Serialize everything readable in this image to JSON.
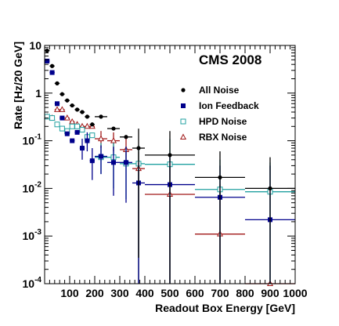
{
  "chart_data": {
    "type": "scatter",
    "title": "CMS 2008",
    "xlabel": "Readout Box Energy [GeV]",
    "ylabel": "Rate [Hz/20 GeV]",
    "xlim": [
      0,
      1000
    ],
    "ylim": [
      0.0001,
      10
    ],
    "y_scale": "log",
    "grid": false,
    "legend_position": "right-middle",
    "x_tick_labels": [
      "100",
      "200",
      "300",
      "400",
      "500",
      "600",
      "700",
      "800",
      "900",
      "1000"
    ],
    "y_tick_labels": [
      {
        "base": "10",
        "exp": "-4"
      },
      {
        "base": "10",
        "exp": "-3"
      },
      {
        "base": "10",
        "exp": "-2"
      },
      {
        "base": "10",
        "exp": "-1"
      },
      {
        "base": "1",
        "exp": ""
      },
      {
        "base": "10",
        "exp": ""
      }
    ],
    "series": [
      {
        "name": "All Noise",
        "color": "#000000",
        "marker": "circle",
        "points": [
          {
            "x": 10,
            "y": 7.8,
            "xerr": 10
          },
          {
            "x": 30,
            "y": 3.7,
            "xerr": 10
          },
          {
            "x": 50,
            "y": 1.6,
            "xerr": 10
          },
          {
            "x": 70,
            "y": 0.95,
            "xerr": 10
          },
          {
            "x": 90,
            "y": 0.7,
            "xerr": 10
          },
          {
            "x": 110,
            "y": 0.55,
            "xerr": 10
          },
          {
            "x": 130,
            "y": 0.45,
            "xerr": 10
          },
          {
            "x": 150,
            "y": 0.4,
            "xerr": 10
          },
          {
            "x": 170,
            "y": 0.32,
            "xerr": 10
          },
          {
            "x": 190,
            "y": 0.22,
            "xerr": 10
          },
          {
            "x": 225,
            "y": 0.32,
            "xerr": 25
          },
          {
            "x": 275,
            "y": 0.18,
            "xerr": 25
          },
          {
            "x": 325,
            "y": 0.12,
            "xerr": 25
          },
          {
            "x": 375,
            "y": 0.07,
            "xerr": 25,
            "ylo": 0.00035,
            "yhi": 0.18
          },
          {
            "x": 500,
            "y": 0.05,
            "xerr": 100,
            "ylo": 0.0001,
            "yhi": 0.16
          },
          {
            "x": 700,
            "y": 0.017,
            "xerr": 100,
            "ylo": 0.0001,
            "yhi": 0.06
          },
          {
            "x": 900,
            "y": 0.01,
            "xerr": 100,
            "ylo": 0.0001,
            "yhi": 0.045
          }
        ]
      },
      {
        "name": "Ion Feedback",
        "color": "#00008b",
        "marker": "square",
        "points": [
          {
            "x": 10,
            "y": 4.7,
            "xerr": 10
          },
          {
            "x": 30,
            "y": 2.7,
            "xerr": 10
          },
          {
            "x": 50,
            "y": 0.6,
            "xerr": 10
          },
          {
            "x": 70,
            "y": 0.3,
            "xerr": 10
          },
          {
            "x": 90,
            "y": 0.14,
            "xerr": 10
          },
          {
            "x": 110,
            "y": 0.1,
            "xerr": 10
          },
          {
            "x": 130,
            "y": 0.15,
            "xerr": 10
          },
          {
            "x": 150,
            "y": 0.07,
            "xerr": 10,
            "ylo": 0.04,
            "yhi": 0.11
          },
          {
            "x": 170,
            "y": 0.1,
            "xerr": 10,
            "ylo": 0.06,
            "yhi": 0.15
          },
          {
            "x": 190,
            "y": 0.038,
            "xerr": 10,
            "ylo": 0.015,
            "yhi": 0.07
          },
          {
            "x": 225,
            "y": 0.047,
            "xerr": 25,
            "ylo": 0.02,
            "yhi": 0.08
          },
          {
            "x": 275,
            "y": 0.035,
            "xerr": 25,
            "ylo": 0.007,
            "yhi": 0.075
          },
          {
            "x": 325,
            "y": 0.035,
            "xerr": 25,
            "ylo": 0.005,
            "yhi": 0.075
          },
          {
            "x": 375,
            "y": 0.013,
            "xerr": 25,
            "ylo": 0.0001,
            "yhi": 0.035
          },
          {
            "x": 500,
            "y": 0.012,
            "xerr": 100,
            "ylo": 0.0001,
            "yhi": 0.05
          },
          {
            "x": 700,
            "y": 0.0065,
            "xerr": 100,
            "ylo": 0.0001,
            "yhi": 0.03
          },
          {
            "x": 900,
            "y": 0.0022,
            "xerr": 100,
            "ylo": 0.0001,
            "yhi": 0.03
          }
        ]
      },
      {
        "name": "HPD Noise",
        "color": "#20a0a0",
        "marker": "open-square",
        "points": [
          {
            "x": 10,
            "y": 0.32,
            "xerr": 10
          },
          {
            "x": 30,
            "y": 0.3,
            "xerr": 10
          },
          {
            "x": 50,
            "y": 0.22,
            "xerr": 10
          },
          {
            "x": 70,
            "y": 0.18,
            "xerr": 10
          },
          {
            "x": 90,
            "y": 0.16,
            "xerr": 10
          },
          {
            "x": 110,
            "y": 0.2,
            "xerr": 10
          },
          {
            "x": 130,
            "y": 0.2,
            "xerr": 10
          },
          {
            "x": 150,
            "y": 0.17,
            "xerr": 10
          },
          {
            "x": 170,
            "y": 0.12,
            "xerr": 10
          },
          {
            "x": 190,
            "y": 0.13,
            "xerr": 10
          },
          {
            "x": 225,
            "y": 0.045,
            "xerr": 25,
            "ylo": 0.02,
            "yhi": 0.09
          },
          {
            "x": 275,
            "y": 0.045,
            "xerr": 25,
            "ylo": 0.01,
            "yhi": 0.09
          },
          {
            "x": 325,
            "y": 0.033,
            "xerr": 25,
            "ylo": 0.006,
            "yhi": 0.075
          },
          {
            "x": 375,
            "y": 0.033,
            "xerr": 25,
            "ylo": 0.0001,
            "yhi": 0.08
          },
          {
            "x": 500,
            "y": 0.032,
            "xerr": 100,
            "ylo": 0.0001,
            "yhi": 0.11
          },
          {
            "x": 700,
            "y": 0.0095,
            "xerr": 100,
            "ylo": 0.0001,
            "yhi": 0.04
          },
          {
            "x": 900,
            "y": 0.0085,
            "xerr": 100,
            "ylo": 0.0001,
            "yhi": 0.035
          }
        ]
      },
      {
        "name": "RBX Noise",
        "color": "#a01818",
        "marker": "open-triangle",
        "points": [
          {
            "x": 10,
            "y": 0.32,
            "xerr": 10
          },
          {
            "x": 30,
            "y": 0.3,
            "xerr": 10
          },
          {
            "x": 50,
            "y": 0.45,
            "xerr": 10
          },
          {
            "x": 70,
            "y": 0.45,
            "xerr": 10
          },
          {
            "x": 90,
            "y": 0.3,
            "xerr": 10
          },
          {
            "x": 110,
            "y": 0.25,
            "xerr": 10
          },
          {
            "x": 130,
            "y": 0.22,
            "xerr": 10
          },
          {
            "x": 150,
            "y": 0.2,
            "xerr": 10
          },
          {
            "x": 170,
            "y": 0.2,
            "xerr": 10
          },
          {
            "x": 190,
            "y": 0.2,
            "xerr": 10
          },
          {
            "x": 225,
            "y": 0.11,
            "xerr": 25,
            "ylo": 0.07,
            "yhi": 0.16
          },
          {
            "x": 275,
            "y": 0.1,
            "xerr": 25,
            "ylo": 0.06,
            "yhi": 0.15
          },
          {
            "x": 325,
            "y": 0.065,
            "xerr": 25,
            "ylo": 0.03,
            "yhi": 0.11
          },
          {
            "x": 375,
            "y": 0.026,
            "xerr": 25,
            "ylo": 0.0001,
            "yhi": 0.06
          },
          {
            "x": 500,
            "y": 0.0075,
            "xerr": 100,
            "ylo": 0.0001,
            "yhi": 0.03
          },
          {
            "x": 700,
            "y": 0.0011,
            "xerr": 100,
            "ylo": 0.0001,
            "yhi": 0.012
          },
          {
            "x": 900,
            "y": 0.0001,
            "xerr": 100
          }
        ]
      }
    ]
  }
}
